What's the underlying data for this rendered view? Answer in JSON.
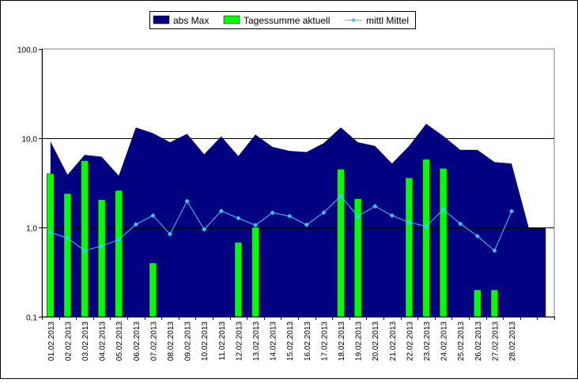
{
  "chart_data": {
    "type": "bar",
    "yscale": "log",
    "ylim": [
      0.1,
      100
    ],
    "y_ticks": [
      {
        "value": 0.1,
        "label": "0,1"
      },
      {
        "value": 1,
        "label": "1,0"
      },
      {
        "value": 10,
        "label": "10,0"
      },
      {
        "value": 100,
        "label": "100,0"
      }
    ],
    "gridlines": [
      1,
      10
    ],
    "legend_position": "top-center",
    "categories": [
      "01.02.2013",
      "02.02.2013",
      "03.02.2013",
      "04.02.2013",
      "05.02.2013",
      "06.02.2013",
      "07.02.2013",
      "08.02.2013",
      "09.02.2013",
      "10.02.2013",
      "11.02.2013",
      "12.02.2013",
      "13.02.2013",
      "14.02.2013",
      "15.02.2013",
      "16.02.2013",
      "17.02.2013",
      "18.02.2013",
      "19.02.2013",
      "20.02.2013",
      "21.02.2013",
      "22.02.2013",
      "23.02.2013",
      "24.02.2013",
      "25.02.2013",
      "26.02.2013",
      "27.02.2013",
      "28.02.2013",
      "",
      ""
    ],
    "series": [
      {
        "name": "abs Max",
        "kind": "area",
        "color": "#000080",
        "values": [
          9.2,
          3.9,
          6.5,
          6.2,
          3.8,
          13.2,
          11.4,
          9.0,
          11.2,
          6.6,
          10.5,
          6.3,
          11.0,
          8.0,
          7.2,
          7.0,
          8.8,
          13.2,
          9.0,
          8.2,
          5.2,
          8.2,
          14.5,
          10.6,
          7.4,
          7.4,
          5.4,
          5.2,
          1.0,
          1.0
        ]
      },
      {
        "name": "Tagessumme aktuell",
        "kind": "bar",
        "color": "#00ff00",
        "values": [
          4.0,
          2.4,
          5.6,
          2.05,
          2.6,
          null,
          0.4,
          null,
          null,
          null,
          null,
          0.68,
          1.0,
          null,
          null,
          null,
          null,
          4.5,
          2.1,
          null,
          null,
          3.6,
          5.8,
          4.6,
          null,
          0.2,
          0.2,
          null,
          null,
          null
        ]
      },
      {
        "name": "mittl Mittel",
        "kind": "line",
        "color": "#33ccff",
        "values": [
          0.88,
          0.76,
          0.55,
          0.62,
          0.73,
          1.08,
          1.36,
          0.84,
          1.97,
          0.95,
          1.53,
          1.27,
          1.06,
          1.46,
          1.34,
          1.07,
          1.47,
          2.25,
          1.33,
          1.73,
          1.36,
          1.14,
          1.03,
          1.59,
          1.1,
          0.8,
          0.55,
          1.52,
          null,
          null
        ]
      }
    ]
  }
}
